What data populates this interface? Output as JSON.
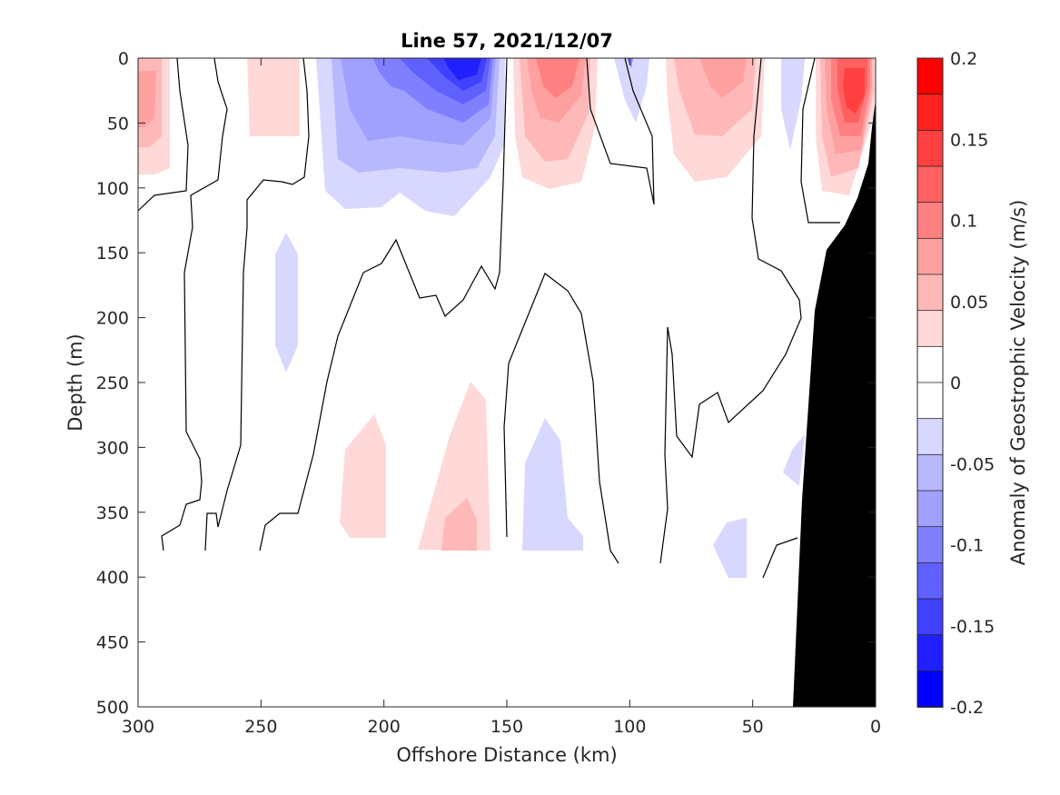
{
  "chart_data": {
    "type": "contourf",
    "title": "Line 57, 2021/12/07",
    "xlabel": "Offshore Distance (km)",
    "ylabel": "Depth (m)",
    "xlim": [
      300,
      0
    ],
    "ylim": [
      0,
      500
    ],
    "x_reversed": true,
    "y_reversed": true,
    "x_ticks": [
      300,
      250,
      200,
      150,
      100,
      50,
      0
    ],
    "y_ticks": [
      0,
      50,
      100,
      150,
      200,
      250,
      300,
      350,
      400,
      450,
      500
    ],
    "colorbar": {
      "label": "Anomaly of Geostrophic Velocity (m/s)",
      "range": [
        -0.2,
        0.2
      ],
      "ticks": [
        "0.2",
        "0.15",
        "0.1",
        "0.05",
        "0",
        "-0.05",
        "-0.1",
        "-0.15",
        "-0.2"
      ],
      "tick_values": [
        0.2,
        0.15,
        0.1,
        0.05,
        0,
        -0.05,
        -0.1,
        -0.15,
        -0.2
      ],
      "levels": 16,
      "colors": [
        "#0000ff",
        "#2020ff",
        "#4040ff",
        "#6060ff",
        "#8080ff",
        "#a0a0ff",
        "#b8b8ff",
        "#d8d8ff",
        "#ffffff",
        "#ffffff",
        "#ffd8d8",
        "#ffb8b8",
        "#ffa0a0",
        "#ff8080",
        "#ff6060",
        "#ff4040",
        "#ff2020",
        "#ff0000"
      ]
    },
    "bathymetry_color": "#000000",
    "features": [
      {
        "kind": "positive",
        "center_x": 290,
        "depth_range": [
          0,
          85
        ],
        "peak": 0.075
      },
      {
        "kind": "positive",
        "center_x": 245,
        "depth_range": [
          0,
          60
        ],
        "peak": 0.04
      },
      {
        "kind": "negative",
        "center_x": 170,
        "depth_range": [
          0,
          120
        ],
        "peak": -0.15
      },
      {
        "kind": "positive",
        "center_x": 130,
        "depth_range": [
          0,
          100
        ],
        "peak": 0.1
      },
      {
        "kind": "negative",
        "center_x": 100,
        "depth_range": [
          0,
          45
        ],
        "peak": -0.03
      },
      {
        "kind": "positive",
        "center_x": 65,
        "depth_range": [
          0,
          100
        ],
        "peak": 0.09
      },
      {
        "kind": "negative",
        "center_x": 35,
        "depth_range": [
          0,
          70
        ],
        "peak": -0.04
      },
      {
        "kind": "positive",
        "center_x": 15,
        "depth_range": [
          0,
          105
        ],
        "peak": 0.15
      },
      {
        "kind": "negative",
        "center_x": 238,
        "depth_range": [
          135,
          240
        ],
        "peak": -0.04
      },
      {
        "kind": "positive",
        "center_x": 205,
        "depth_range": [
          275,
          380
        ],
        "peak": 0.04
      },
      {
        "kind": "positive",
        "center_x": 168,
        "depth_range": [
          250,
          380
        ],
        "peak": 0.07
      },
      {
        "kind": "negative",
        "center_x": 135,
        "depth_range": [
          280,
          380
        ],
        "peak": -0.04
      },
      {
        "kind": "negative",
        "center_x": 60,
        "depth_range": [
          355,
          400
        ],
        "peak": -0.04
      },
      {
        "kind": "negative",
        "center_x": 33,
        "depth_range": [
          280,
          330
        ],
        "peak": -0.03
      }
    ]
  }
}
